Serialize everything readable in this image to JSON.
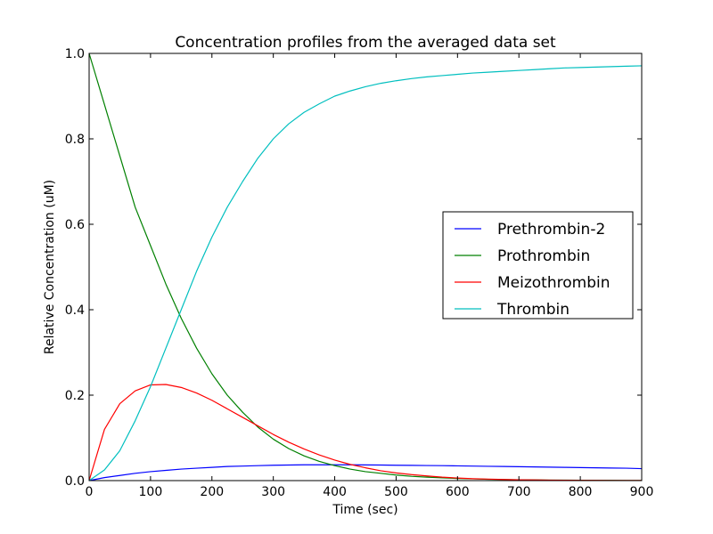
{
  "chart_data": {
    "type": "line",
    "title": "Concentration profiles from the averaged data set",
    "xlabel": "Time (sec)",
    "ylabel": "Relative Concentration (uM)",
    "xlim": [
      0,
      900
    ],
    "ylim": [
      0,
      1.0
    ],
    "xticks": [
      0,
      100,
      200,
      300,
      400,
      500,
      600,
      700,
      800,
      900
    ],
    "yticks": [
      0.0,
      0.2,
      0.4,
      0.6,
      0.8,
      1.0
    ],
    "xtick_labels": [
      "0",
      "100",
      "200",
      "300",
      "400",
      "500",
      "600",
      "700",
      "800",
      "900"
    ],
    "ytick_labels": [
      "0.0",
      "0.2",
      "0.4",
      "0.6",
      "0.8",
      "1.0"
    ],
    "grid": false,
    "legend_position": "center-right",
    "x": [
      0,
      25,
      50,
      75,
      100,
      125,
      150,
      175,
      200,
      225,
      250,
      275,
      300,
      325,
      350,
      375,
      400,
      425,
      450,
      475,
      500,
      525,
      550,
      575,
      600,
      625,
      650,
      675,
      700,
      725,
      750,
      775,
      800,
      825,
      850,
      875,
      900
    ],
    "series": [
      {
        "name": "Prethrombin-2",
        "color": "#0000ff",
        "values": [
          0.0,
          0.007,
          0.012,
          0.017,
          0.021,
          0.024,
          0.027,
          0.029,
          0.031,
          0.033,
          0.034,
          0.035,
          0.036,
          0.0365,
          0.037,
          0.037,
          0.037,
          0.037,
          0.0368,
          0.0365,
          0.036,
          0.0357,
          0.0353,
          0.035,
          0.0345,
          0.034,
          0.0335,
          0.033,
          0.0325,
          0.032,
          0.0315,
          0.031,
          0.0305,
          0.03,
          0.0295,
          0.029,
          0.028
        ]
      },
      {
        "name": "Prothrombin",
        "color": "#008000",
        "values": [
          1.0,
          0.88,
          0.76,
          0.64,
          0.55,
          0.46,
          0.38,
          0.31,
          0.25,
          0.2,
          0.16,
          0.125,
          0.097,
          0.075,
          0.058,
          0.045,
          0.035,
          0.027,
          0.021,
          0.017,
          0.013,
          0.01,
          0.008,
          0.0065,
          0.005,
          0.004,
          0.003,
          0.0025,
          0.002,
          0.0015,
          0.0012,
          0.001,
          0.0008,
          0.0006,
          0.0005,
          0.0004,
          0.0003
        ]
      },
      {
        "name": "Meizothrombin",
        "color": "#ff0000",
        "values": [
          0.0,
          0.12,
          0.18,
          0.21,
          0.224,
          0.225,
          0.218,
          0.205,
          0.188,
          0.168,
          0.148,
          0.128,
          0.108,
          0.09,
          0.074,
          0.06,
          0.048,
          0.038,
          0.03,
          0.023,
          0.018,
          0.014,
          0.011,
          0.008,
          0.006,
          0.0045,
          0.0035,
          0.0026,
          0.002,
          0.0015,
          0.0011,
          0.0008,
          0.0006,
          0.0005,
          0.0004,
          0.0003,
          0.0002
        ]
      },
      {
        "name": "Thrombin",
        "color": "#00bfbf",
        "values": [
          0.0,
          0.025,
          0.07,
          0.14,
          0.22,
          0.31,
          0.4,
          0.49,
          0.57,
          0.64,
          0.7,
          0.755,
          0.8,
          0.835,
          0.862,
          0.882,
          0.9,
          0.912,
          0.922,
          0.93,
          0.936,
          0.941,
          0.945,
          0.948,
          0.951,
          0.954,
          0.956,
          0.958,
          0.96,
          0.962,
          0.964,
          0.966,
          0.967,
          0.968,
          0.969,
          0.97,
          0.971
        ]
      }
    ]
  }
}
